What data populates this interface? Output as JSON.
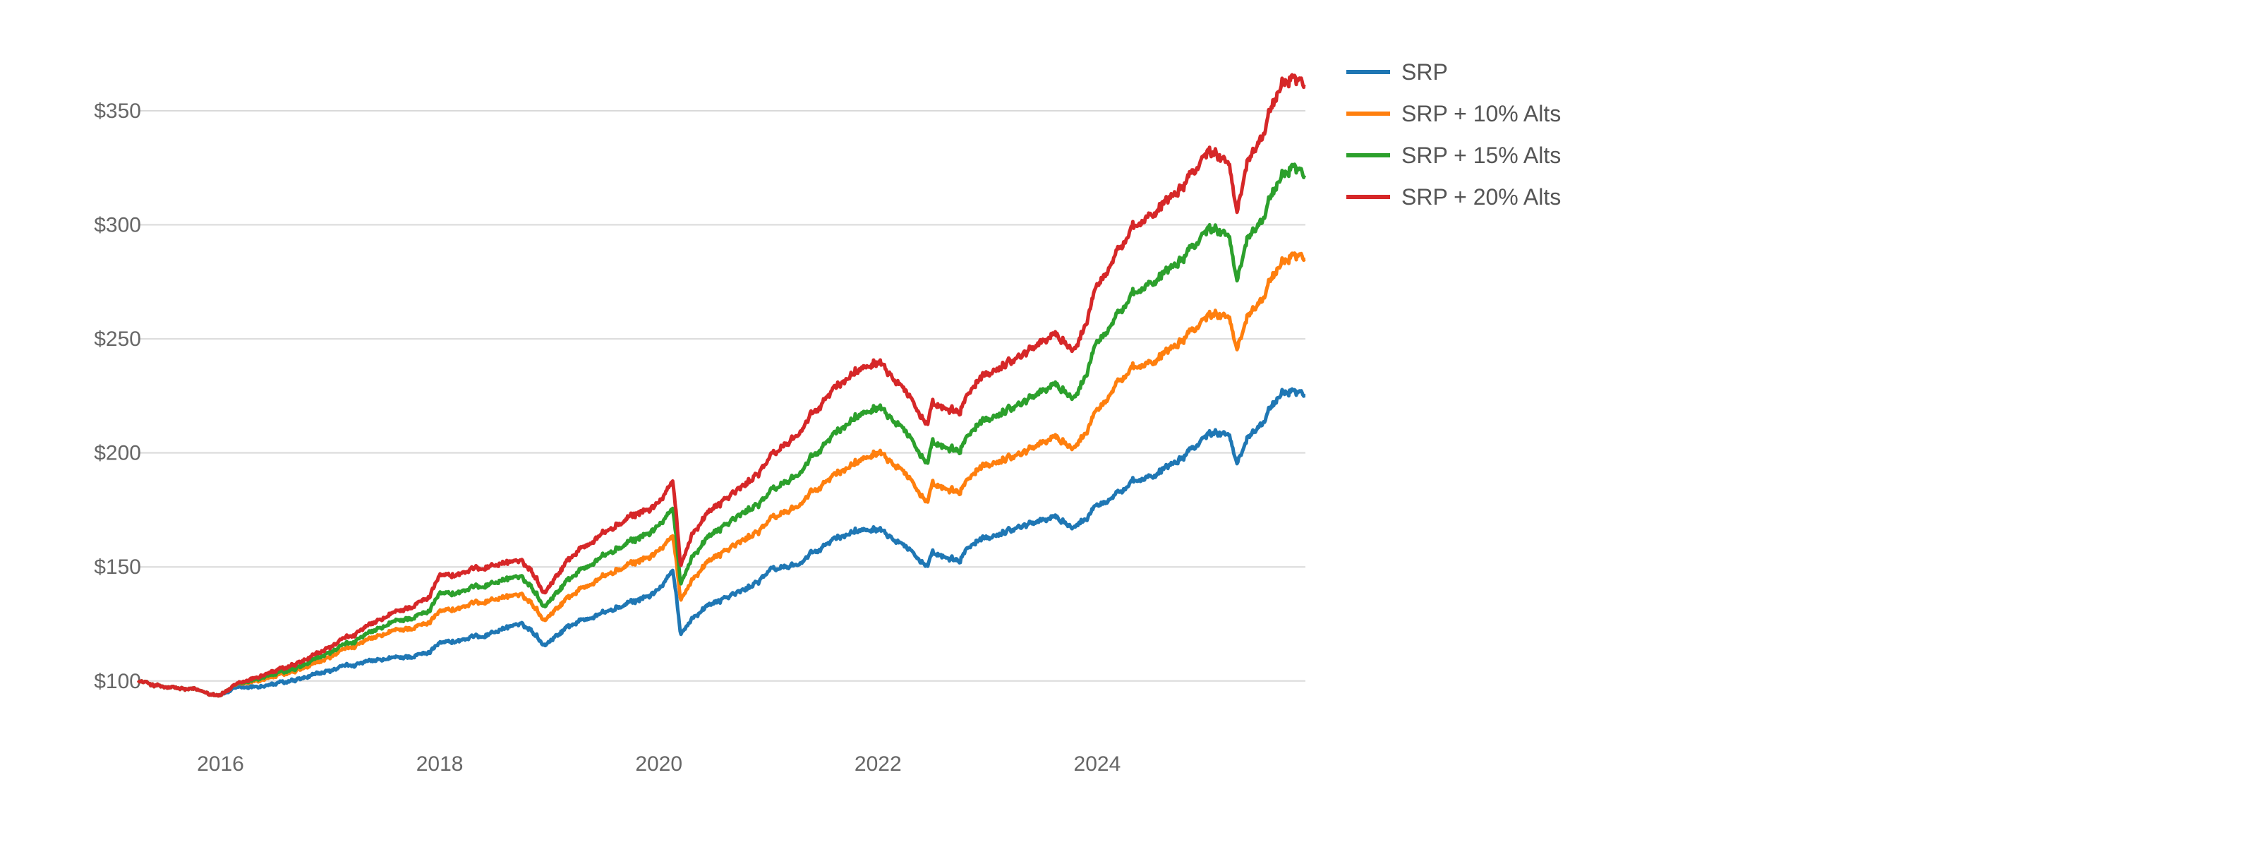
{
  "chart_data": {
    "type": "line",
    "title": "",
    "xlabel": "",
    "ylabel": "",
    "xlim": [
      2015.25,
      2025.9
    ],
    "ylim": [
      86,
      380
    ],
    "grid": true,
    "legend_position": "top-right",
    "x_ticks": [
      2016,
      2018,
      2020,
      2022,
      2024
    ],
    "x_tick_labels": [
      "2016",
      "2018",
      "2020",
      "2022",
      "2024"
    ],
    "y_ticks": [
      100,
      150,
      200,
      250,
      300,
      350
    ],
    "y_tick_labels": [
      "$100",
      "$150",
      "$200",
      "$250",
      "$300",
      "$350"
    ],
    "series": [
      {
        "name": "SRP",
        "color": "#1f77b4",
        "x": [
          2015.25,
          2015.5,
          2015.75,
          2016.0,
          2016.1,
          2016.4,
          2016.7,
          2016.9,
          2017.2,
          2017.6,
          2017.9,
          2018.0,
          2018.1,
          2018.4,
          2018.7,
          2018.85,
          2018.95,
          2019.2,
          2019.5,
          2019.8,
          2020.0,
          2020.13,
          2020.2,
          2020.3,
          2020.5,
          2020.8,
          2021.0,
          2021.3,
          2021.6,
          2021.8,
          2022.0,
          2022.2,
          2022.45,
          2022.5,
          2022.75,
          2022.8,
          2023.0,
          2023.3,
          2023.6,
          2023.82,
          2024.0,
          2024.2,
          2024.5,
          2024.8,
          2025.0,
          2025.2,
          2025.28,
          2025.35,
          2025.5,
          2025.7,
          2025.8,
          2025.9
        ],
        "values": [
          100,
          97,
          96,
          94,
          96,
          98,
          100,
          103,
          107,
          110,
          112,
          118,
          117,
          120,
          125,
          122,
          116,
          125,
          130,
          135,
          140,
          148,
          120,
          128,
          135,
          140,
          148,
          152,
          162,
          166,
          168,
          162,
          150,
          155,
          152,
          158,
          163,
          168,
          172,
          167,
          178,
          183,
          190,
          200,
          208,
          210,
          195,
          205,
          215,
          225,
          228,
          226
        ]
      },
      {
        "name": "SRP + 10% Alts",
        "color": "#ff7f0e",
        "x": [
          2015.25,
          2015.5,
          2015.75,
          2016.0,
          2016.1,
          2016.4,
          2016.7,
          2016.9,
          2017.2,
          2017.6,
          2017.9,
          2018.0,
          2018.1,
          2018.4,
          2018.7,
          2018.85,
          2018.95,
          2019.2,
          2019.5,
          2019.8,
          2020.0,
          2020.13,
          2020.2,
          2020.3,
          2020.5,
          2020.8,
          2021.0,
          2021.3,
          2021.6,
          2021.8,
          2022.0,
          2022.2,
          2022.45,
          2022.5,
          2022.75,
          2022.8,
          2023.0,
          2023.3,
          2023.6,
          2023.82,
          2024.0,
          2024.2,
          2024.5,
          2024.8,
          2025.0,
          2025.2,
          2025.28,
          2025.35,
          2025.5,
          2025.7,
          2025.8,
          2025.9
        ],
        "values": [
          100,
          97,
          96,
          94,
          97,
          101,
          104,
          108,
          115,
          122,
          125,
          132,
          131,
          135,
          138,
          134,
          127,
          138,
          146,
          152,
          157,
          163,
          135,
          145,
          155,
          162,
          170,
          178,
          190,
          196,
          202,
          195,
          178,
          185,
          182,
          188,
          195,
          200,
          207,
          202,
          220,
          232,
          240,
          252,
          260,
          262,
          245,
          258,
          270,
          282,
          288,
          286
        ]
      },
      {
        "name": "SRP + 15% Alts",
        "color": "#2ca02c",
        "x": [
          2015.25,
          2015.5,
          2015.75,
          2016.0,
          2016.1,
          2016.4,
          2016.7,
          2016.9,
          2017.2,
          2017.6,
          2017.9,
          2018.0,
          2018.1,
          2018.4,
          2018.7,
          2018.85,
          2018.95,
          2019.2,
          2019.5,
          2019.8,
          2020.0,
          2020.13,
          2020.2,
          2020.3,
          2020.5,
          2020.8,
          2021.0,
          2021.3,
          2021.6,
          2021.8,
          2022.0,
          2022.2,
          2022.45,
          2022.5,
          2022.75,
          2022.8,
          2023.0,
          2023.3,
          2023.6,
          2023.82,
          2024.0,
          2024.2,
          2024.5,
          2024.8,
          2025.0,
          2025.2,
          2025.28,
          2025.35,
          2025.5,
          2025.7,
          2025.8,
          2025.9
        ],
        "values": [
          100,
          97,
          96,
          94,
          97,
          102,
          105,
          110,
          117,
          126,
          130,
          140,
          138,
          142,
          146,
          141,
          133,
          146,
          155,
          162,
          168,
          175,
          142,
          155,
          166,
          174,
          182,
          192,
          208,
          216,
          222,
          214,
          195,
          203,
          200,
          207,
          215,
          222,
          230,
          224,
          250,
          262,
          275,
          288,
          298,
          298,
          275,
          292,
          305,
          320,
          327,
          322
        ]
      },
      {
        "name": "SRP + 20% Alts",
        "color": "#d62728",
        "x": [
          2015.25,
          2015.5,
          2015.75,
          2016.0,
          2016.1,
          2016.4,
          2016.7,
          2016.9,
          2017.2,
          2017.6,
          2017.9,
          2018.0,
          2018.1,
          2018.4,
          2018.7,
          2018.85,
          2018.95,
          2019.2,
          2019.5,
          2019.8,
          2020.0,
          2020.13,
          2020.2,
          2020.3,
          2020.5,
          2020.8,
          2021.0,
          2021.3,
          2021.6,
          2021.8,
          2022.0,
          2022.2,
          2022.45,
          2022.5,
          2022.75,
          2022.8,
          2023.0,
          2023.3,
          2023.6,
          2023.82,
          2024.0,
          2024.2,
          2024.5,
          2024.8,
          2025.0,
          2025.2,
          2025.28,
          2025.35,
          2025.5,
          2025.7,
          2025.8,
          2025.9
        ],
        "values": [
          100,
          97,
          96,
          94,
          97,
          103,
          107,
          112,
          120,
          130,
          136,
          148,
          146,
          150,
          153,
          148,
          139,
          155,
          165,
          173,
          178,
          187,
          150,
          165,
          177,
          186,
          197,
          210,
          228,
          236,
          242,
          232,
          212,
          220,
          217,
          225,
          235,
          243,
          252,
          245,
          275,
          290,
          305,
          320,
          332,
          330,
          305,
          325,
          342,
          360,
          366,
          362
        ]
      }
    ]
  }
}
